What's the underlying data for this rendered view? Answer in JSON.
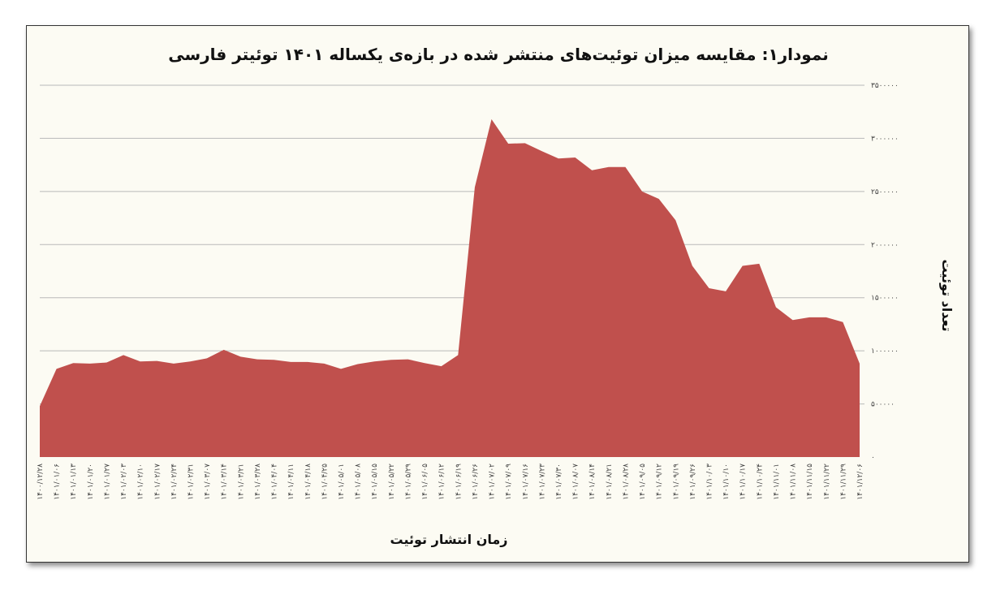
{
  "chart_data": {
    "type": "area",
    "title": "نمودار۱: مقایسه میزان توئیت‌های منتشر شده در بازه‌ی یکساله ۱۴۰۱ توئیتر فارسی",
    "xlabel": "زمان انتشار توئیت",
    "ylabel": "تعداد توئیت",
    "ylim": [
      0,
      3500000
    ],
    "y_ticks": [
      0,
      500000,
      1000000,
      1500000,
      2000000,
      2500000,
      3000000,
      3500000
    ],
    "y_tick_labels": [
      "۰",
      "۵۰۰۰۰۰",
      "۱۰۰۰۰۰۰",
      "۱۵۰۰۰۰۰",
      "۲۰۰۰۰۰۰",
      "۲۵۰۰۰۰۰",
      "۳۰۰۰۰۰۰",
      "۳۵۰۰۰۰۰"
    ],
    "y_axis_position": "right",
    "grid": true,
    "legend": "none",
    "color": "#c0504d",
    "categories": [
      "۱۴۰۰/۱۲/۲۸",
      "۱۴۰۱/۰۱/۰۶",
      "۱۴۰۱/۰۱/۱۳",
      "۱۴۰۱/۰۱/۲۰",
      "۱۴۰۱/۰۱/۲۷",
      "۱۴۰۱/۰۲/۰۳",
      "۱۴۰۱/۰۲/۱۰",
      "۱۴۰۱/۰۲/۱۷",
      "۱۴۰۱/۰۲/۲۴",
      "۱۴۰۱/۰۲/۳۱",
      "۱۴۰۱/۰۳/۰۷",
      "۱۴۰۱/۰۳/۱۴",
      "۱۴۰۱/۰۳/۲۱",
      "۱۴۰۱/۰۳/۲۸",
      "۱۴۰۱/۰۴/۰۴",
      "۱۴۰۱/۰۴/۱۱",
      "۱۴۰۱/۰۴/۱۸",
      "۱۴۰۱/۰۴/۲۵",
      "۱۴۰۱/۰۵/۰۱",
      "۱۴۰۱/۰۵/۰۸",
      "۱۴۰۱/۰۵/۱۵",
      "۱۴۰۱/۰۵/۲۲",
      "۱۴۰۱/۰۵/۲۹",
      "۱۴۰۱/۰۶/۰۵",
      "۱۴۰۱/۰۶/۱۲",
      "۱۴۰۱/۰۶/۱۹",
      "۱۴۰۱/۰۶/۲۶",
      "۱۴۰۱/۰۷/۰۲",
      "۱۴۰۱/۰۷/۰۹",
      "۱۴۰۱/۰۷/۱۶",
      "۱۴۰۱/۰۷/۲۳",
      "۱۴۰۱/۰۷/۳۰",
      "۱۴۰۱/۰۸/۰۷",
      "۱۴۰۱/۰۸/۱۴",
      "۱۴۰۱/۰۸/۲۱",
      "۱۴۰۱/۰۸/۲۸",
      "۱۴۰۱/۰۹/۰۵",
      "۱۴۰۱/۰۹/۱۲",
      "۱۴۰۱/۰۹/۱۹",
      "۱۴۰۱/۰۹/۲۶",
      "۱۴۰۱/۱۰/۰۳",
      "۱۴۰۱/۱۰/۱۰",
      "۱۴۰۱/۱۰/۱۷",
      "۱۴۰۱/۱۰/۲۴",
      "۱۴۰۱/۱۱/۰۱",
      "۱۴۰۱/۱۱/۰۸",
      "۱۴۰۱/۱۱/۱۵",
      "۱۴۰۱/۱۱/۲۲",
      "۱۴۰۱/۱۱/۲۹",
      "۱۴۰۱/۱۲/۰۶"
    ],
    "values": [
      480000,
      830000,
      885000,
      880000,
      890000,
      960000,
      900000,
      905000,
      880000,
      900000,
      930000,
      1010000,
      945000,
      920000,
      915000,
      895000,
      895000,
      880000,
      830000,
      875000,
      900000,
      915000,
      920000,
      885000,
      855000,
      960000,
      2540000,
      3180000,
      2950000,
      2955000,
      2880000,
      2810000,
      2820000,
      2700000,
      2730000,
      2730000,
      2500000,
      2430000,
      2230000,
      1800000,
      1590000,
      1560000,
      1800000,
      1820000,
      1410000,
      1290000,
      1315000,
      1315000,
      1270000,
      880000
    ]
  }
}
